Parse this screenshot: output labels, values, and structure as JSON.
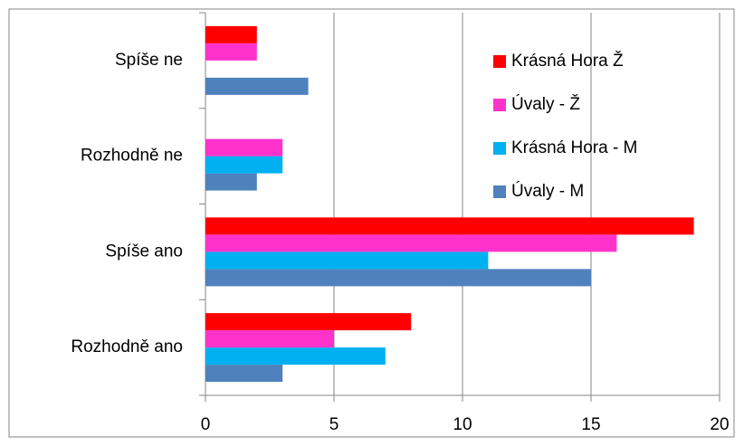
{
  "chart_data": {
    "type": "bar",
    "orientation": "horizontal",
    "categories": [
      "Rozhodně ano",
      "Spíše ano",
      "Rozhodně ne",
      "Spíše ne"
    ],
    "series": [
      {
        "name": "Úvaly - M",
        "color": "#4f81bd",
        "values": [
          3,
          15,
          2,
          4
        ]
      },
      {
        "name": "Krásná Hora - M",
        "color": "#00b0f0",
        "values": [
          7,
          11,
          3,
          0
        ]
      },
      {
        "name": "Úvaly - Ž",
        "color": "#ff33cc",
        "values": [
          5,
          16,
          3,
          2
        ]
      },
      {
        "name": "Krásná Hora  Ž",
        "color": "#ff0000",
        "values": [
          8,
          19,
          0,
          2
        ]
      }
    ],
    "xlim": [
      0,
      20
    ],
    "xticks": [
      0,
      5,
      10,
      15,
      20
    ],
    "grid": true,
    "legend": "right"
  }
}
